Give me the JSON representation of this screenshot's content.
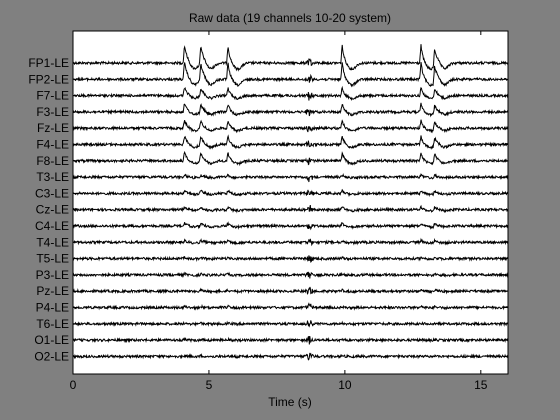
{
  "figure": {
    "background": "#808080"
  },
  "chart_data": {
    "type": "line",
    "title": "Raw data (19 channels 10-20 system)",
    "xlabel": "Time (s)",
    "ylabel": "",
    "xlim": [
      0,
      16
    ],
    "x_ticks": [
      "0",
      "5",
      "10",
      "15"
    ],
    "grid": false,
    "line_color": "#000000",
    "axes_background": "#ffffff",
    "series": [
      {
        "name": "FP1-LE",
        "blink_amp": 1.0,
        "blink_sign": 1
      },
      {
        "name": "FP2-LE",
        "blink_amp": 0.95,
        "blink_sign": 1
      },
      {
        "name": "F7-LE",
        "blink_amp": 0.45,
        "blink_sign": 1
      },
      {
        "name": "F3-LE",
        "blink_amp": 0.45,
        "blink_sign": 1
      },
      {
        "name": "Fz-LE",
        "blink_amp": 0.42,
        "blink_sign": 1
      },
      {
        "name": "F4-LE",
        "blink_amp": 0.48,
        "blink_sign": 1
      },
      {
        "name": "F8-LE",
        "blink_amp": 0.45,
        "blink_sign": 1
      },
      {
        "name": "T3-LE",
        "blink_amp": 0.12,
        "blink_sign": 1
      },
      {
        "name": "C3-LE",
        "blink_amp": 0.16,
        "blink_sign": 1
      },
      {
        "name": "Cz-LE",
        "blink_amp": 0.16,
        "blink_sign": 1
      },
      {
        "name": "C4-LE",
        "blink_amp": 0.16,
        "blink_sign": 1
      },
      {
        "name": "T4-LE",
        "blink_amp": 0.1,
        "blink_sign": 1
      },
      {
        "name": "T5-LE",
        "blink_amp": 0.05,
        "blink_sign": 1
      },
      {
        "name": "P3-LE",
        "blink_amp": 0.06,
        "blink_sign": 1
      },
      {
        "name": "Pz-LE",
        "blink_amp": 0.06,
        "blink_sign": 1
      },
      {
        "name": "P4-LE",
        "blink_amp": 0.06,
        "blink_sign": 1
      },
      {
        "name": "T6-LE",
        "blink_amp": 0.04,
        "blink_sign": 1
      },
      {
        "name": "O1-LE",
        "blink_amp": 0.04,
        "blink_sign": 1
      },
      {
        "name": "O2-LE",
        "blink_amp": 0.04,
        "blink_sign": 1
      }
    ],
    "artifact_times": [
      4.1,
      4.7,
      5.7,
      9.9,
      12.8,
      13.3
    ],
    "burst_time": 8.7
  }
}
